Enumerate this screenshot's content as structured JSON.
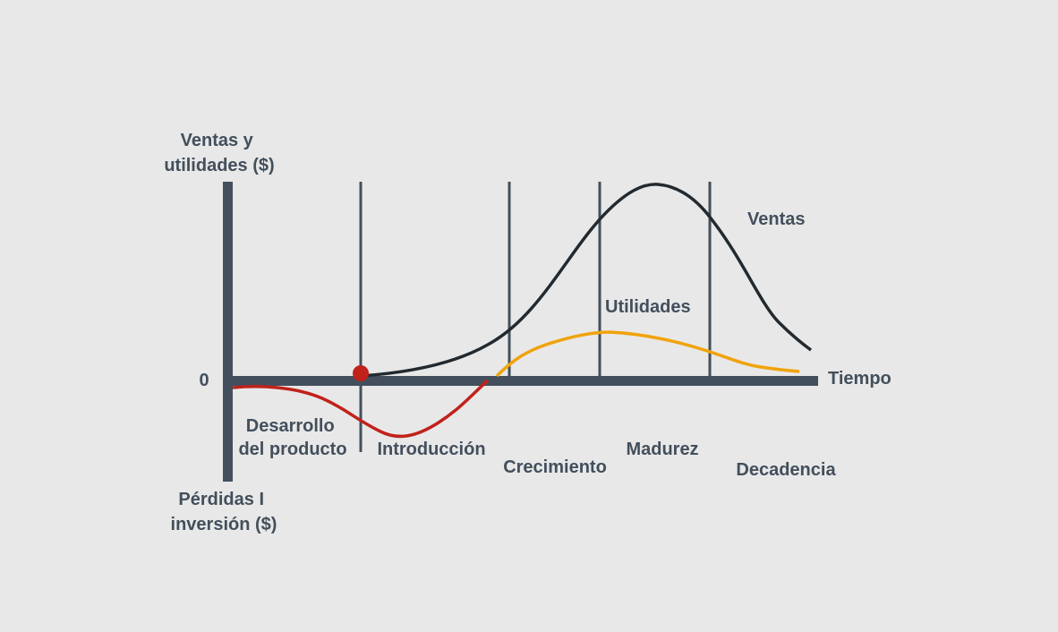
{
  "y_axis": {
    "top_label": [
      "Ventas y",
      "utilidades ($)"
    ],
    "bottom_label": [
      "Pérdidas I",
      "inversión ($)"
    ],
    "zero_label": "0"
  },
  "x_axis": {
    "label": "Tiempo"
  },
  "curves": {
    "sales": "Ventas",
    "profits": "Utilidades"
  },
  "stages": [
    [
      "Desarrollo",
      "del producto"
    ],
    [
      "Introducción"
    ],
    [
      "Crecimiento"
    ],
    [
      "Madurez"
    ],
    [
      "Decadencia"
    ]
  ]
}
